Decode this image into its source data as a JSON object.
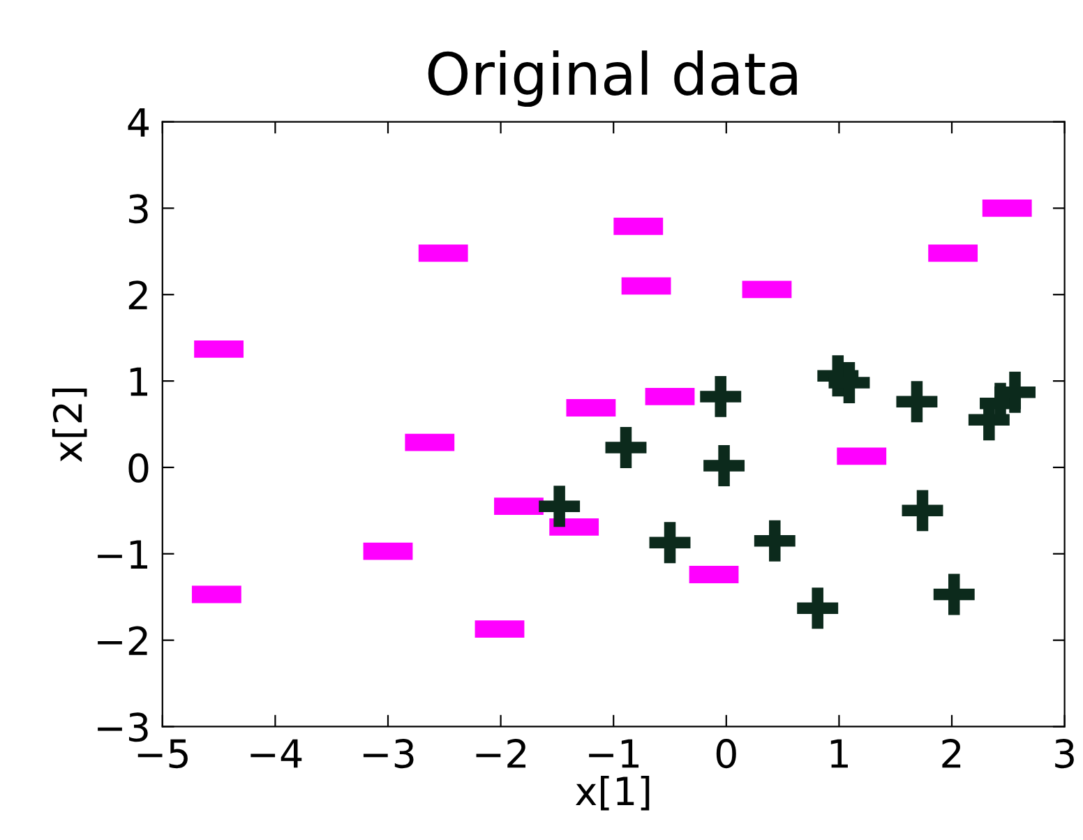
{
  "chart_data": {
    "type": "scatter",
    "title": "Original data",
    "xlabel": "x[1]",
    "ylabel": "x[2]",
    "xlim": [
      -5,
      3
    ],
    "ylim": [
      -3,
      4
    ],
    "xticks": [
      {
        "value": -5,
        "label": "−5"
      },
      {
        "value": -4,
        "label": "−4"
      },
      {
        "value": -3,
        "label": "−3"
      },
      {
        "value": -2,
        "label": "−2"
      },
      {
        "value": -1,
        "label": "−1"
      },
      0,
      1,
      2,
      3
    ],
    "yticks": [
      {
        "value": -3,
        "label": "−3"
      },
      {
        "value": -2,
        "label": "−2"
      },
      {
        "value": -1,
        "label": "−1"
      },
      0,
      1,
      2,
      3,
      4
    ],
    "grid": false,
    "legend": false,
    "series": [
      {
        "color": "#ff00ff",
        "marker": "square",
        "x": [
          -4.5,
          -4.52,
          -2.51,
          -2.63,
          -3.0,
          -2.01,
          -1.84,
          -1.35,
          -1.2,
          -0.78,
          -0.71,
          -0.5,
          -0.11,
          0.36,
          1.2,
          2.01,
          2.49
        ],
        "values": [
          1.37,
          -1.47,
          2.48,
          0.29,
          -0.97,
          -1.87,
          -0.45,
          -0.69,
          0.69,
          2.79,
          2.1,
          0.82,
          -1.24,
          2.06,
          0.13,
          2.48,
          3.0
        ]
      },
      {
        "color": "#0c2a1c",
        "marker": "cross",
        "x": [
          -1.48,
          -0.89,
          -0.5,
          -0.05,
          -0.02,
          0.43,
          0.81,
          0.99,
          1.09,
          1.69,
          1.74,
          2.02,
          2.33,
          2.43,
          2.56
        ],
        "values": [
          -0.45,
          0.23,
          -0.87,
          0.82,
          0.02,
          -0.85,
          -1.63,
          1.06,
          0.98,
          0.76,
          -0.5,
          -1.47,
          0.55,
          0.74,
          0.87
        ]
      }
    ]
  }
}
